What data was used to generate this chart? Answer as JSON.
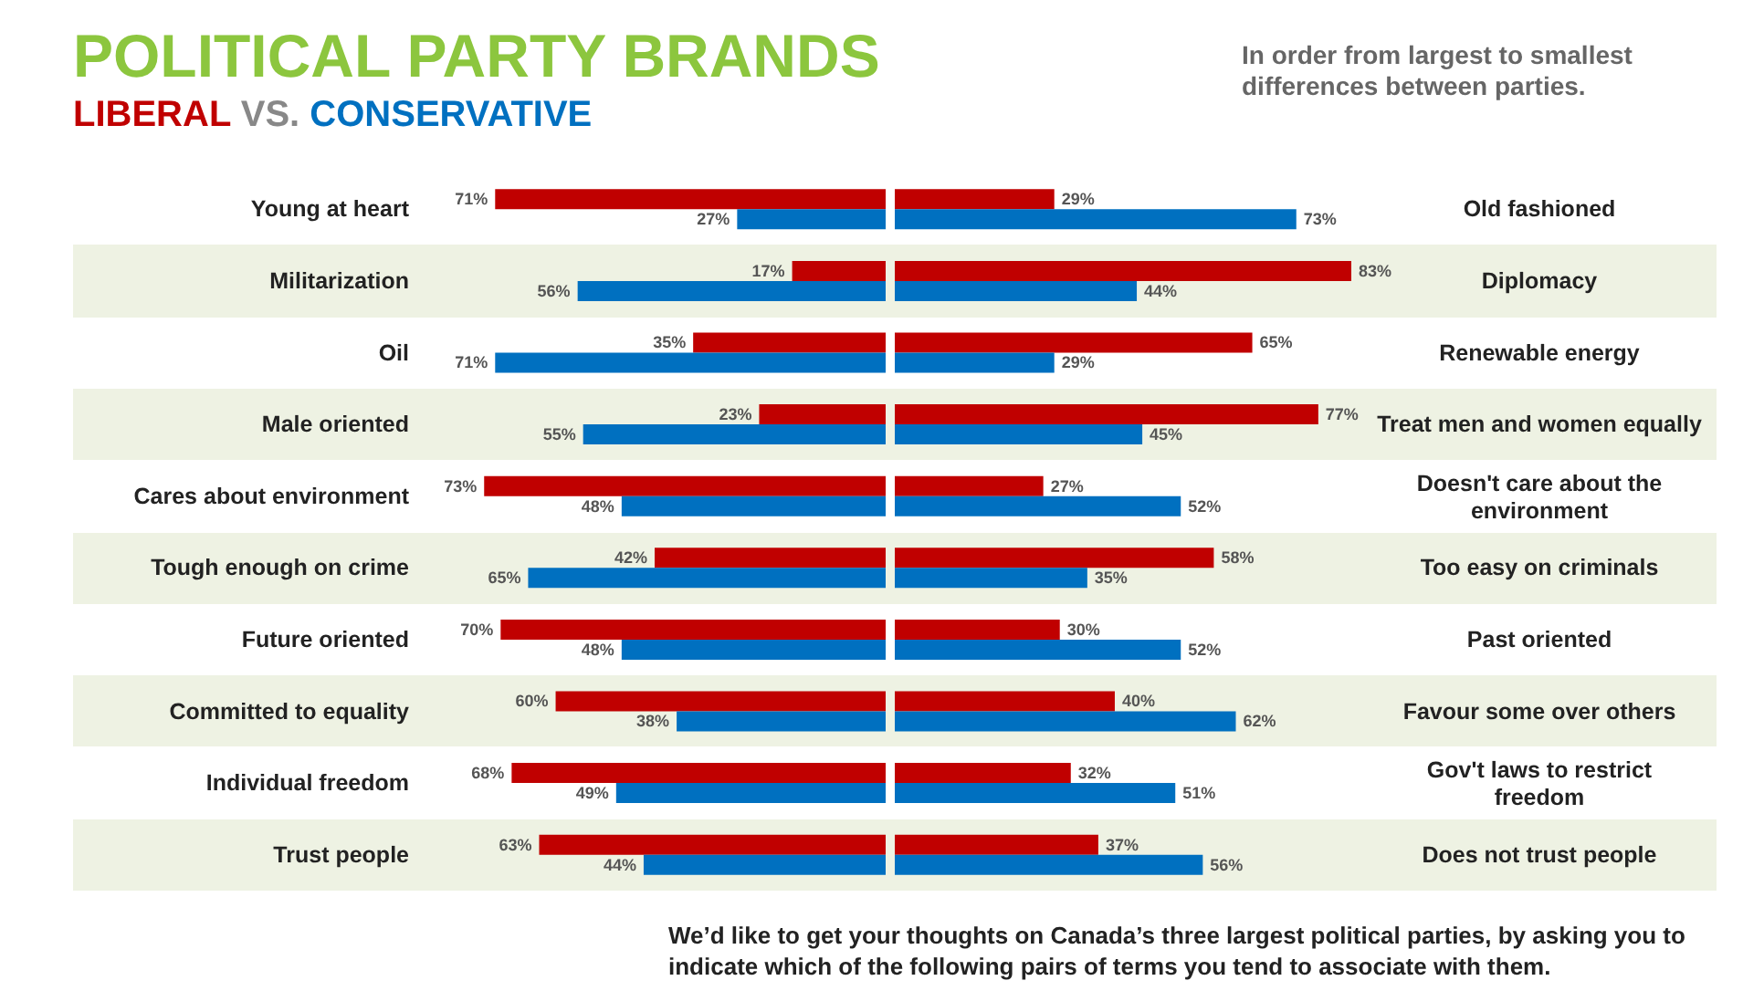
{
  "chart_data": [
    {
      "type": "bar",
      "orientation": "horizontal",
      "title": "POLITICAL PARTY BRANDS",
      "subtitle": "VS.",
      "legend": "top left",
      "categories": [
        "Young at heart",
        "Militarization",
        "Oil",
        "Male oriented",
        "Cares about environment",
        "Tough enough on crime",
        "Future oriented",
        "Committed to equality",
        "Individual freedom",
        "Trust people"
      ],
      "series": [
        {
          "name": "LIBERAL",
          "color": "#c00000",
          "values": [
            71,
            17,
            35,
            23,
            73,
            42,
            70,
            60,
            68,
            63
          ],
          "value_labels": [
            "71%",
            "17%",
            "35%",
            "23%",
            "73%",
            "42%",
            "70%",
            "60%",
            "68%",
            "63%"
          ]
        },
        {
          "name": "CONSERVATIVE",
          "color": "#0070c0",
          "values": [
            27,
            56,
            71,
            55,
            48,
            65,
            48,
            38,
            49,
            44
          ],
          "value_labels": [
            "27%",
            "56%",
            "71%",
            "55%",
            "48%",
            "65%",
            "48%",
            "38%",
            "49%",
            "44%"
          ]
        }
      ]
    },
    {
      "type": "bar",
      "orientation": "horizontal",
      "annotations": [
        "In order from largest to smallest differences between parties.",
        "We’d like to get your thoughts on Canada’s three largest political parties, by asking you to indicate which of the following pairs of terms you tend to associate with them."
      ],
      "categories": [
        "Old fashioned",
        "Diplomacy",
        "Renewable energy",
        "Treat men and women equally",
        "Doesn't care about the environment",
        "Too easy on criminals",
        "Past oriented",
        "Favour some over others",
        "Gov't laws to restrict freedom",
        "Does not trust people"
      ],
      "series": [
        {
          "color": "#c00000",
          "values": [
            29,
            83,
            65,
            77,
            27,
            58,
            30,
            40,
            32,
            37
          ],
          "value_labels": [
            "29%",
            "83%",
            "65%",
            "77%",
            "27%",
            "58%",
            "30%",
            "40%",
            "32%",
            "37%"
          ]
        },
        {
          "color": "#0070c0",
          "values": [
            73,
            44,
            29,
            45,
            52,
            35,
            52,
            62,
            51,
            56
          ],
          "value_labels": [
            "73%",
            "44%",
            "29%",
            "45%",
            "52%",
            "35%",
            "52%",
            "62%",
            "51%",
            "56%"
          ]
        }
      ]
    }
  ]
}
